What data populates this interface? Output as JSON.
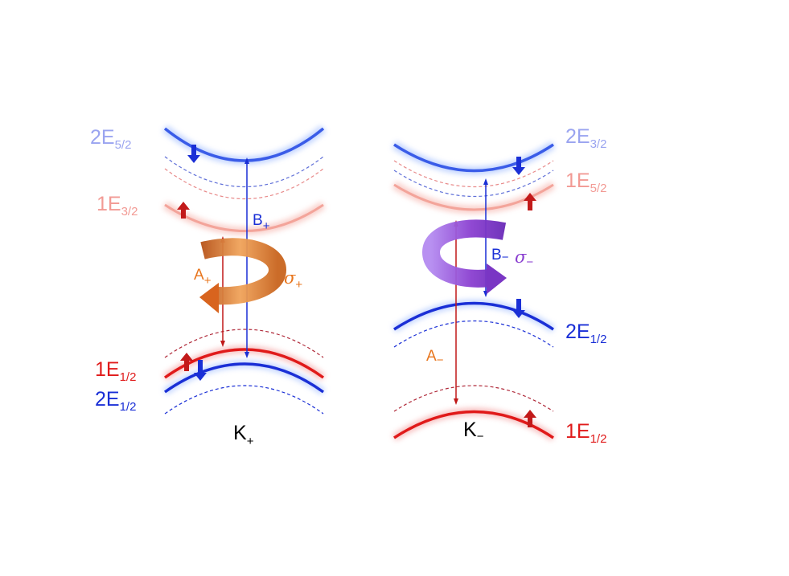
{
  "colors": {
    "blue_strong": "#1a2fd6",
    "blue_light": "#9aa4f0",
    "red_strong": "#e01a1a",
    "red_light": "#f29a94",
    "orange": "#e8761e",
    "purple": "#8a3fd0",
    "text_dark": "#000000"
  },
  "left_panel": {
    "valley_label": {
      "main": "K",
      "sub": "+"
    },
    "level_2E52": {
      "main": "2E",
      "sub": "5/2"
    },
    "level_1E32": {
      "main": "1E",
      "sub": "3/2"
    },
    "level_1E12": {
      "main": "1E",
      "sub": "1/2"
    },
    "level_2E12": {
      "main": "2E",
      "sub": "1/2"
    },
    "transition_A": {
      "main": "A",
      "sub": "+"
    },
    "transition_B": {
      "main": "B",
      "sub": "+"
    },
    "polarization": {
      "main": "σ",
      "sub": "+"
    }
  },
  "right_panel": {
    "valley_label": {
      "main": "K",
      "sub": "−"
    },
    "level_2E32": {
      "main": "2E",
      "sub": "3/2"
    },
    "level_1E52": {
      "main": "1E",
      "sub": "5/2"
    },
    "level_2E12": {
      "main": "2E",
      "sub": "1/2"
    },
    "level_1E12": {
      "main": "1E",
      "sub": "1/2"
    },
    "transition_A": {
      "main": "A",
      "sub": "−"
    },
    "transition_B": {
      "main": "B",
      "sub": "−"
    },
    "polarization": {
      "main": "σ",
      "sub": "−"
    }
  },
  "icons": {
    "spin_up": "arrow-up-icon",
    "spin_down": "arrow-down-icon",
    "circular_polarization": "circular-arrow-icon"
  }
}
